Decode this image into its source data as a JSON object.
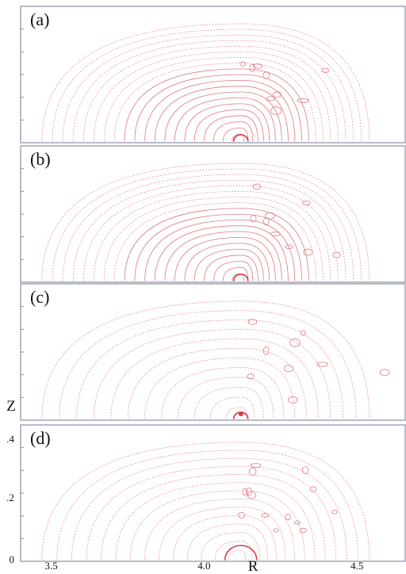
{
  "panels": [
    {
      "label": "(a)",
      "style": "regular"
    },
    {
      "label": "(b)",
      "style": "regular"
    },
    {
      "label": "(c)",
      "style": "sparse"
    },
    {
      "label": "(d)",
      "style": "stochastic"
    }
  ],
  "colors": {
    "flux": "#e07a82",
    "axis_core": "#d83a48",
    "frame": "#8a8fa3"
  },
  "chart_data": {
    "type": "scatter",
    "title": "",
    "xlabel": "R",
    "ylabel": "Z",
    "x_ticks": [
      "3.5",
      "4.0",
      "4.5"
    ],
    "y_ticks": [
      "0",
      ".2",
      ".4"
    ],
    "x_tick_values": [
      3.5,
      4.0,
      4.5
    ],
    "y_tick_values": [
      0,
      0.2,
      0.4
    ],
    "xlim": [
      3.4,
      4.66
    ],
    "ylim": [
      0,
      0.42
    ],
    "magnetic_axis": {
      "R": 4.12,
      "Z": 0
    },
    "boundary": {
      "R_inner": 3.47,
      "R_outer": 4.54,
      "Z_top": 0.38
    },
    "grid": false,
    "legend": "none"
  }
}
